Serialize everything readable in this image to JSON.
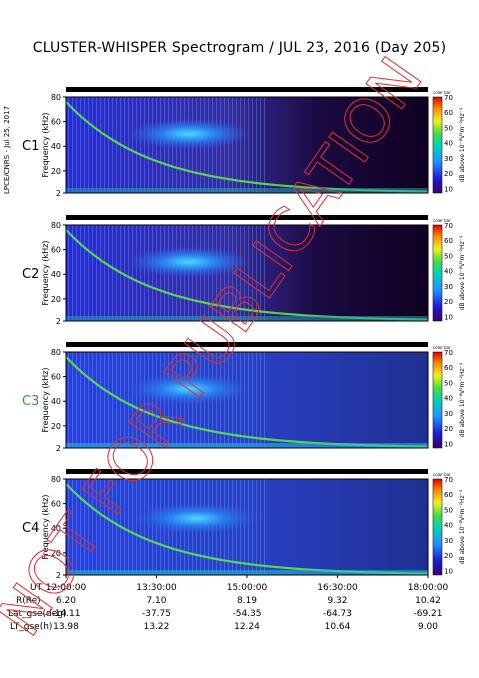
{
  "title": "CLUSTER-WHISPER Spectrogram / JUL 23, 2016 (Day 205)",
  "side_label": "LPCE/CNRS - Jul 25, 2017",
  "watermark": "NOT FOR PUBLICATION",
  "colorbar": {
    "header": "color bar",
    "label": "dB above 10⁻⁸V²m⁻²Hz⁻¹",
    "ticks": [
      "70",
      "60",
      "50",
      "40",
      "30",
      "20",
      "10"
    ],
    "range": [
      7,
      70
    ]
  },
  "chart_data": {
    "type": "heatmap",
    "title": "CLUSTER-WHISPER Spectrogram / JUL 23, 2016 (Day 205)",
    "ylabel": "Frequency (kHz)",
    "ylim": [
      2,
      80
    ],
    "yticks": [
      "80",
      "60",
      "40",
      "20",
      "2"
    ],
    "xlim": [
      "12:00:00",
      "18:00:00"
    ],
    "panels": [
      {
        "name": "C1",
        "name_color": "#000000"
      },
      {
        "name": "C2",
        "name_color": "#000000"
      },
      {
        "name": "C3",
        "name_color": "#2aa02a"
      },
      {
        "name": "C4",
        "name_color": "#000000"
      }
    ],
    "orbit_table": {
      "columns": [
        "12:00:00",
        "13:30:00",
        "15:00:00",
        "16:30:00",
        "18:00:00"
      ],
      "rows": [
        {
          "label": "UT",
          "values": [
            "12:00:00",
            "13:30:00",
            "15:00:00",
            "16:30:00",
            "18:00:00"
          ]
        },
        {
          "label": "R(Re)",
          "values": [
            "6.20",
            "7.10",
            "8.19",
            "9.32",
            "10.42"
          ]
        },
        {
          "label": "Lat_gse(deg)",
          "values": [
            "-14.11",
            "-37.75",
            "-54.35",
            "-64.73",
            "-69.21"
          ]
        },
        {
          "label": "LT_gse(h)",
          "values": [
            "13.98",
            "13.22",
            "12.24",
            "10.64",
            "9.00"
          ]
        }
      ]
    }
  }
}
